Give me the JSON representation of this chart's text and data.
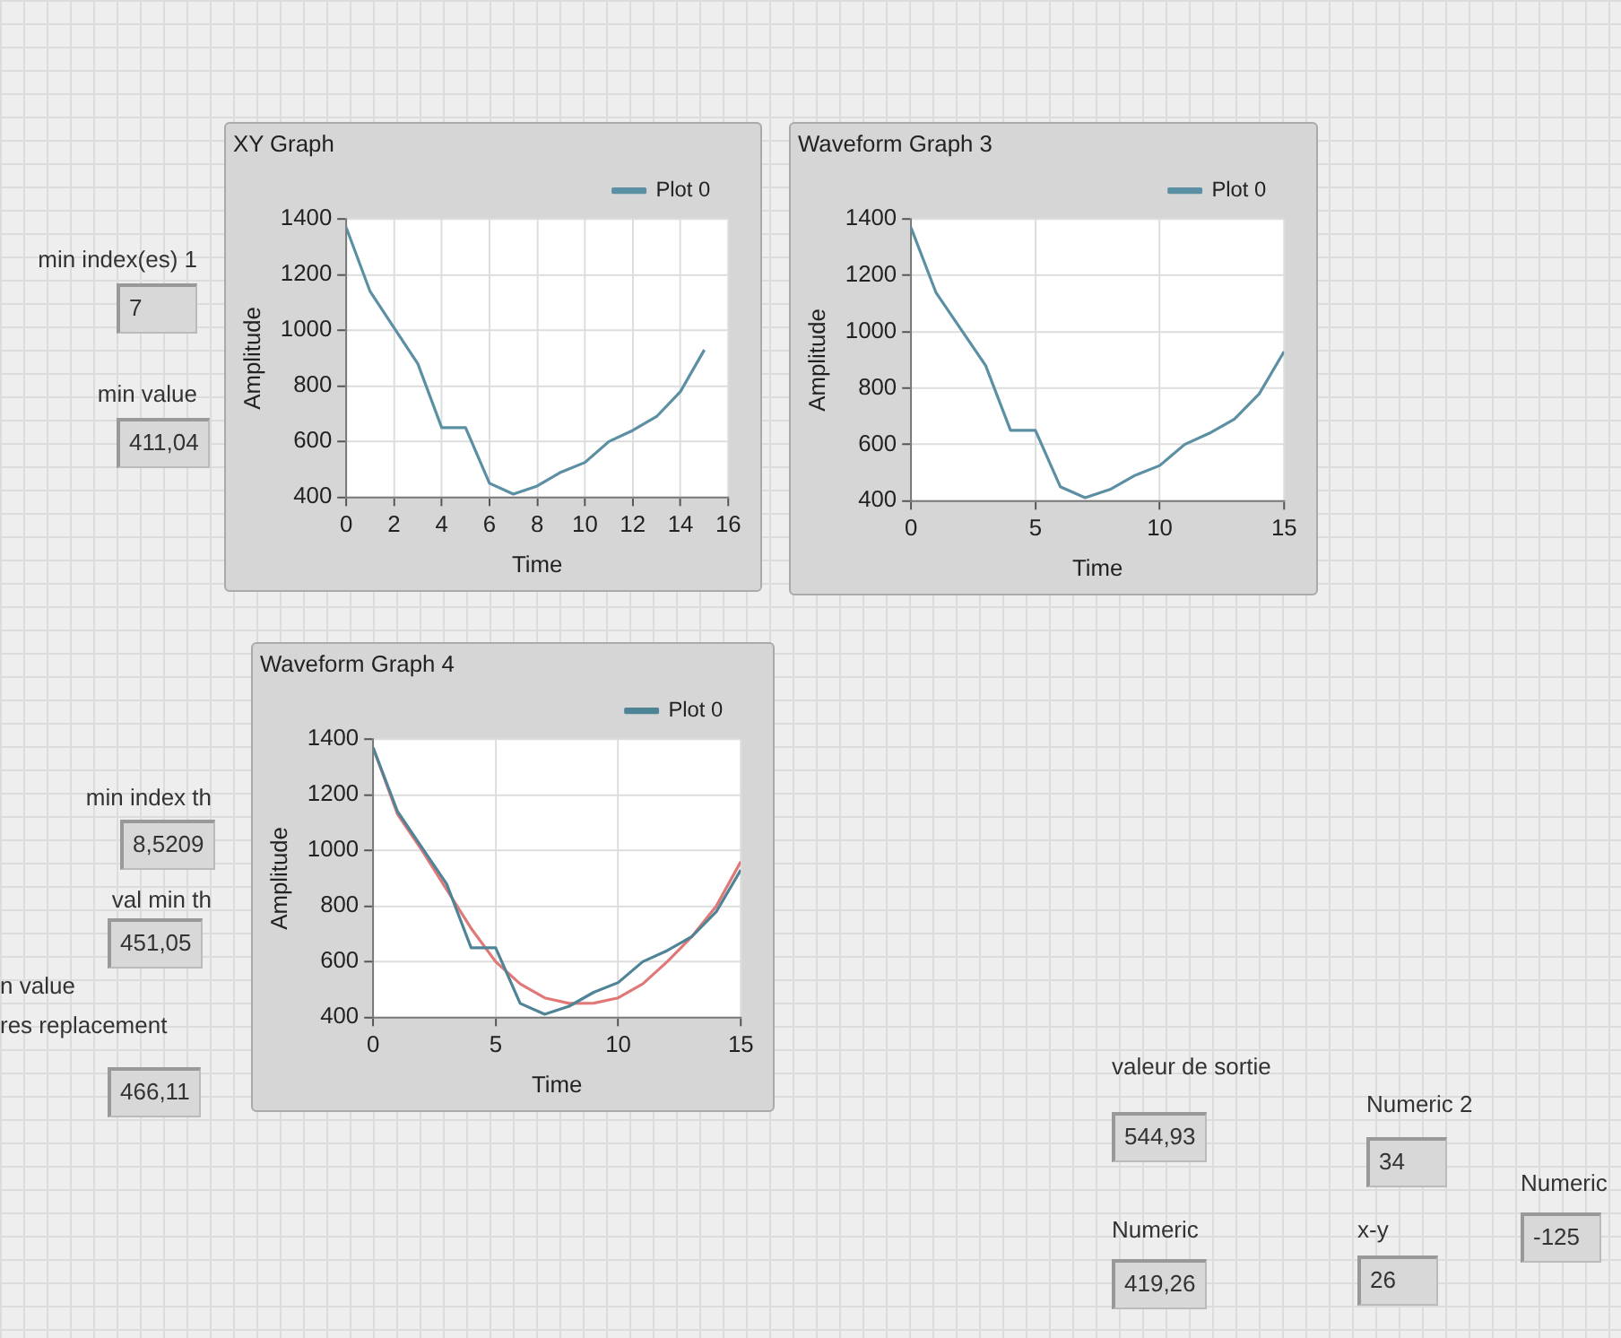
{
  "chart_data": [
    {
      "type": "line",
      "title": "XY Graph",
      "xlabel": "Time",
      "ylabel": "Amplitude",
      "x": [
        0,
        1,
        2,
        3,
        4,
        5,
        6,
        7,
        8,
        9,
        10,
        11,
        12,
        13,
        14,
        15
      ],
      "xlim": [
        0,
        16
      ],
      "xticks": [
        0,
        2,
        4,
        6,
        8,
        10,
        12,
        14,
        16
      ],
      "ylim": [
        400,
        1400
      ],
      "yticks": [
        400,
        600,
        800,
        1000,
        1200,
        1400
      ],
      "grid": true,
      "legend": "top right",
      "marker": "none",
      "series": [
        {
          "name": "Plot 0",
          "color": "#5b8fa3",
          "values": [
            1370,
            1140,
            1010,
            880,
            650,
            650,
            450,
            411,
            440,
            490,
            525,
            600,
            640,
            690,
            780,
            930
          ]
        }
      ]
    },
    {
      "type": "line",
      "title": "Waveform Graph 3",
      "xlabel": "Time",
      "ylabel": "Amplitude",
      "x": [
        0,
        1,
        2,
        3,
        4,
        5,
        6,
        7,
        8,
        9,
        10,
        11,
        12,
        13,
        14,
        15
      ],
      "xlim": [
        0,
        15
      ],
      "xticks": [
        0,
        5,
        10,
        15
      ],
      "ylim": [
        400,
        1400
      ],
      "yticks": [
        400,
        600,
        800,
        1000,
        1200,
        1400
      ],
      "grid": true,
      "legend": "top right",
      "marker": "none",
      "series": [
        {
          "name": "Plot 0",
          "color": "#5b8fa3",
          "values": [
            1370,
            1140,
            1010,
            880,
            650,
            650,
            450,
            411,
            440,
            490,
            525,
            600,
            640,
            690,
            780,
            930
          ]
        }
      ]
    },
    {
      "type": "line",
      "title": "Waveform Graph 4",
      "xlabel": "Time",
      "ylabel": "Amplitude",
      "x": [
        0,
        1,
        2,
        3,
        4,
        5,
        6,
        7,
        8,
        9,
        10,
        11,
        12,
        13,
        14,
        15
      ],
      "xlim": [
        0,
        15
      ],
      "xticks": [
        0,
        5,
        10,
        15
      ],
      "ylim": [
        400,
        1400
      ],
      "yticks": [
        400,
        600,
        800,
        1000,
        1200,
        1400
      ],
      "grid": true,
      "legend": "top right",
      "marker": "none",
      "series": [
        {
          "name": "Plot 0",
          "color": "#4f8496",
          "values": [
            1370,
            1140,
            1010,
            880,
            650,
            650,
            450,
            411,
            440,
            490,
            525,
            600,
            640,
            690,
            780,
            930
          ]
        },
        {
          "color": "#e07878",
          "values": [
            1370,
            1130,
            1000,
            860,
            720,
            600,
            520,
            470,
            450,
            451,
            470,
            520,
            600,
            690,
            800,
            960
          ]
        }
      ]
    },
    {
      "type": "other",
      "annotations": [
        "min index(es) 1",
        "7",
        "min value",
        "411,04",
        "min index th",
        "8,5209",
        "val min th",
        "451,05",
        "n value",
        "res replacement",
        "466,11",
        "valeur de sortie",
        "544,93",
        "Numeric",
        "419,26",
        "Numeric 2",
        "34",
        "x-y",
        "26",
        "Numeric",
        "-125"
      ]
    }
  ]
}
